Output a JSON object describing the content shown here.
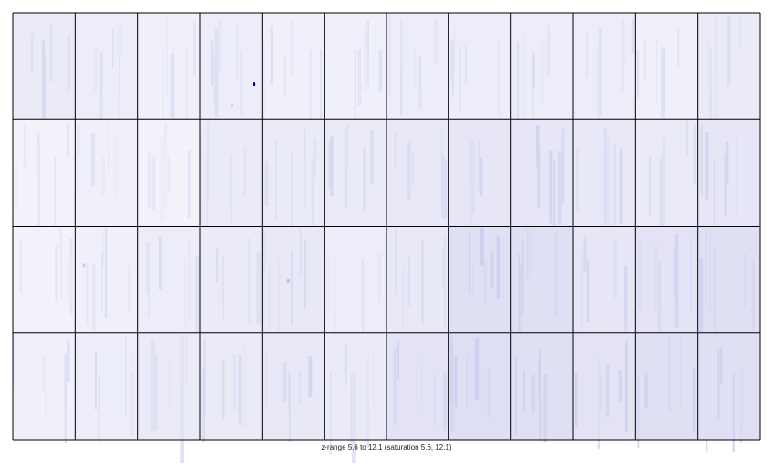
{
  "chart_data": {
    "type": "heatmap",
    "panels": {
      "rows": 4,
      "cols": 12
    },
    "zrange": [
      5.6,
      12.1
    ],
    "saturation": [
      5.6,
      12.1
    ],
    "colormap": {
      "low": "#ffffff",
      "high": "#0000a8"
    },
    "caption": "z-range 5.6 to 12.1 (saturation 5.6, 12.1)",
    "panel_mean_intensity": [
      [
        0.08,
        0.07,
        0.06,
        0.07,
        0.06,
        0.06,
        0.07,
        0.07,
        0.07,
        0.07,
        0.06,
        0.08
      ],
      [
        0.05,
        0.06,
        0.05,
        0.08,
        0.08,
        0.08,
        0.09,
        0.1,
        0.1,
        0.09,
        0.08,
        0.1
      ],
      [
        0.05,
        0.06,
        0.07,
        0.08,
        0.09,
        0.07,
        0.09,
        0.12,
        0.12,
        0.1,
        0.11,
        0.12
      ],
      [
        0.06,
        0.07,
        0.08,
        0.08,
        0.09,
        0.08,
        0.11,
        0.13,
        0.12,
        0.11,
        0.12,
        0.12
      ]
    ],
    "hot_spots": [
      {
        "row": 0,
        "col": 3,
        "value": 12.1
      },
      {
        "row": 2,
        "col": 4,
        "value": 7.2
      },
      {
        "row": 2,
        "col": 1,
        "value": 6.8
      },
      {
        "row": 0,
        "col": 3,
        "value": 6.9
      }
    ]
  }
}
